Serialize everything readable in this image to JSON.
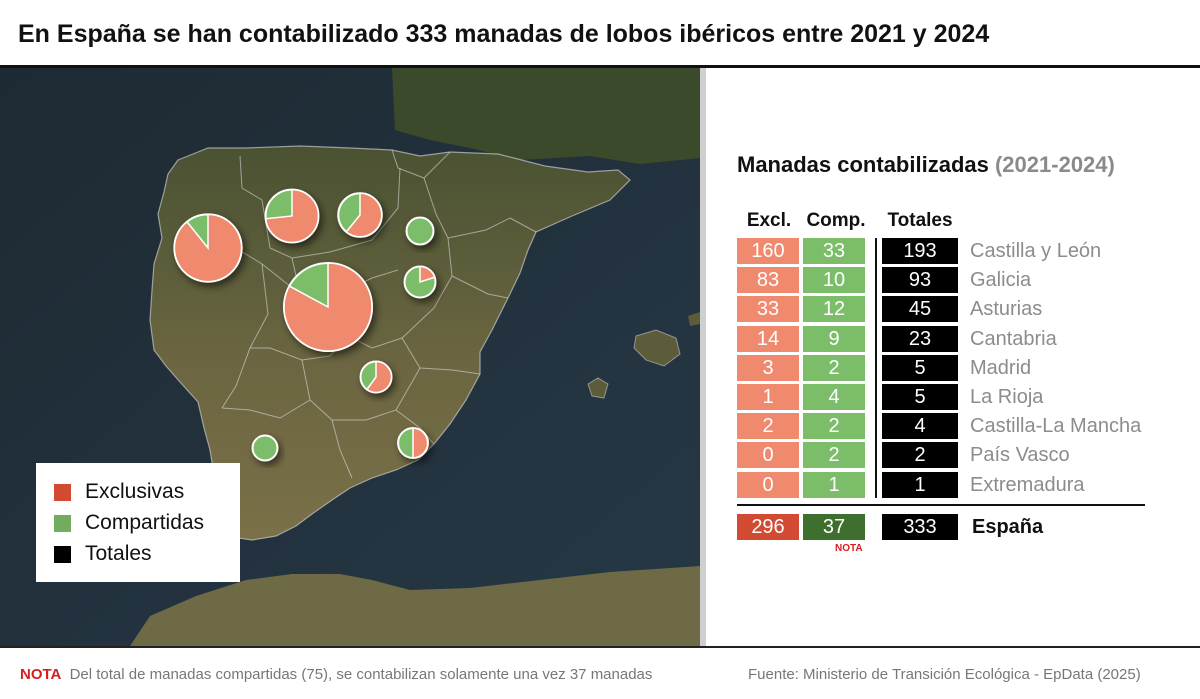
{
  "title": "En España se han contabilizado 333 manadas de lobos ibéricos entre 2021 y 2024",
  "legend": {
    "exclusivas": "Exclusivas",
    "compartidas": "Compartidas",
    "totales": "Totales"
  },
  "colors": {
    "exclusivas": "#f08a6e",
    "compartidas": "#7cbd6a",
    "totales": "#000000",
    "exclusivas_total": "#d34a33",
    "compartidas_total": "#3f6f2e",
    "nota": "#d32020"
  },
  "panel": {
    "title": "Manadas contabilizadas",
    "subtitle": "(2021-2024)"
  },
  "table": {
    "headers": {
      "excl": "Excl.",
      "comp": "Comp.",
      "totales": "Totales"
    },
    "total_row": {
      "region": "España",
      "excl": "296",
      "comp": "37",
      "total": "333",
      "nota": "NOTA"
    }
  },
  "chart_data": {
    "type": "table",
    "title": "Manadas contabilizadas (2021-2024)",
    "columns": [
      "Excl.",
      "Comp.",
      "Totales"
    ],
    "rows": [
      {
        "region": "Castilla y León",
        "excl": 160,
        "comp": 33,
        "total": 193
      },
      {
        "region": "Galicia",
        "excl": 83,
        "comp": 10,
        "total": 93
      },
      {
        "region": "Asturias",
        "excl": 33,
        "comp": 12,
        "total": 45
      },
      {
        "region": "Cantabria",
        "excl": 14,
        "comp": 9,
        "total": 23
      },
      {
        "region": "Madrid",
        "excl": 3,
        "comp": 2,
        "total": 5
      },
      {
        "region": "La Rioja",
        "excl": 1,
        "comp": 4,
        "total": 5
      },
      {
        "region": "Castilla-La Mancha",
        "excl": 2,
        "comp": 2,
        "total": 4
      },
      {
        "region": "País Vasco",
        "excl": 0,
        "comp": 2,
        "total": 2
      },
      {
        "region": "Extremadura",
        "excl": 0,
        "comp": 1,
        "total": 1
      }
    ],
    "total": {
      "region": "España",
      "excl": 296,
      "comp": 37,
      "total": 333
    }
  },
  "footnote": {
    "label": "NOTA",
    "text": "Del total de manadas compartidas (75), se contabilizan solamente una vez 37 manadas"
  },
  "source": "Fuente: Ministerio de Transición Ecológica - EpData (2025)"
}
